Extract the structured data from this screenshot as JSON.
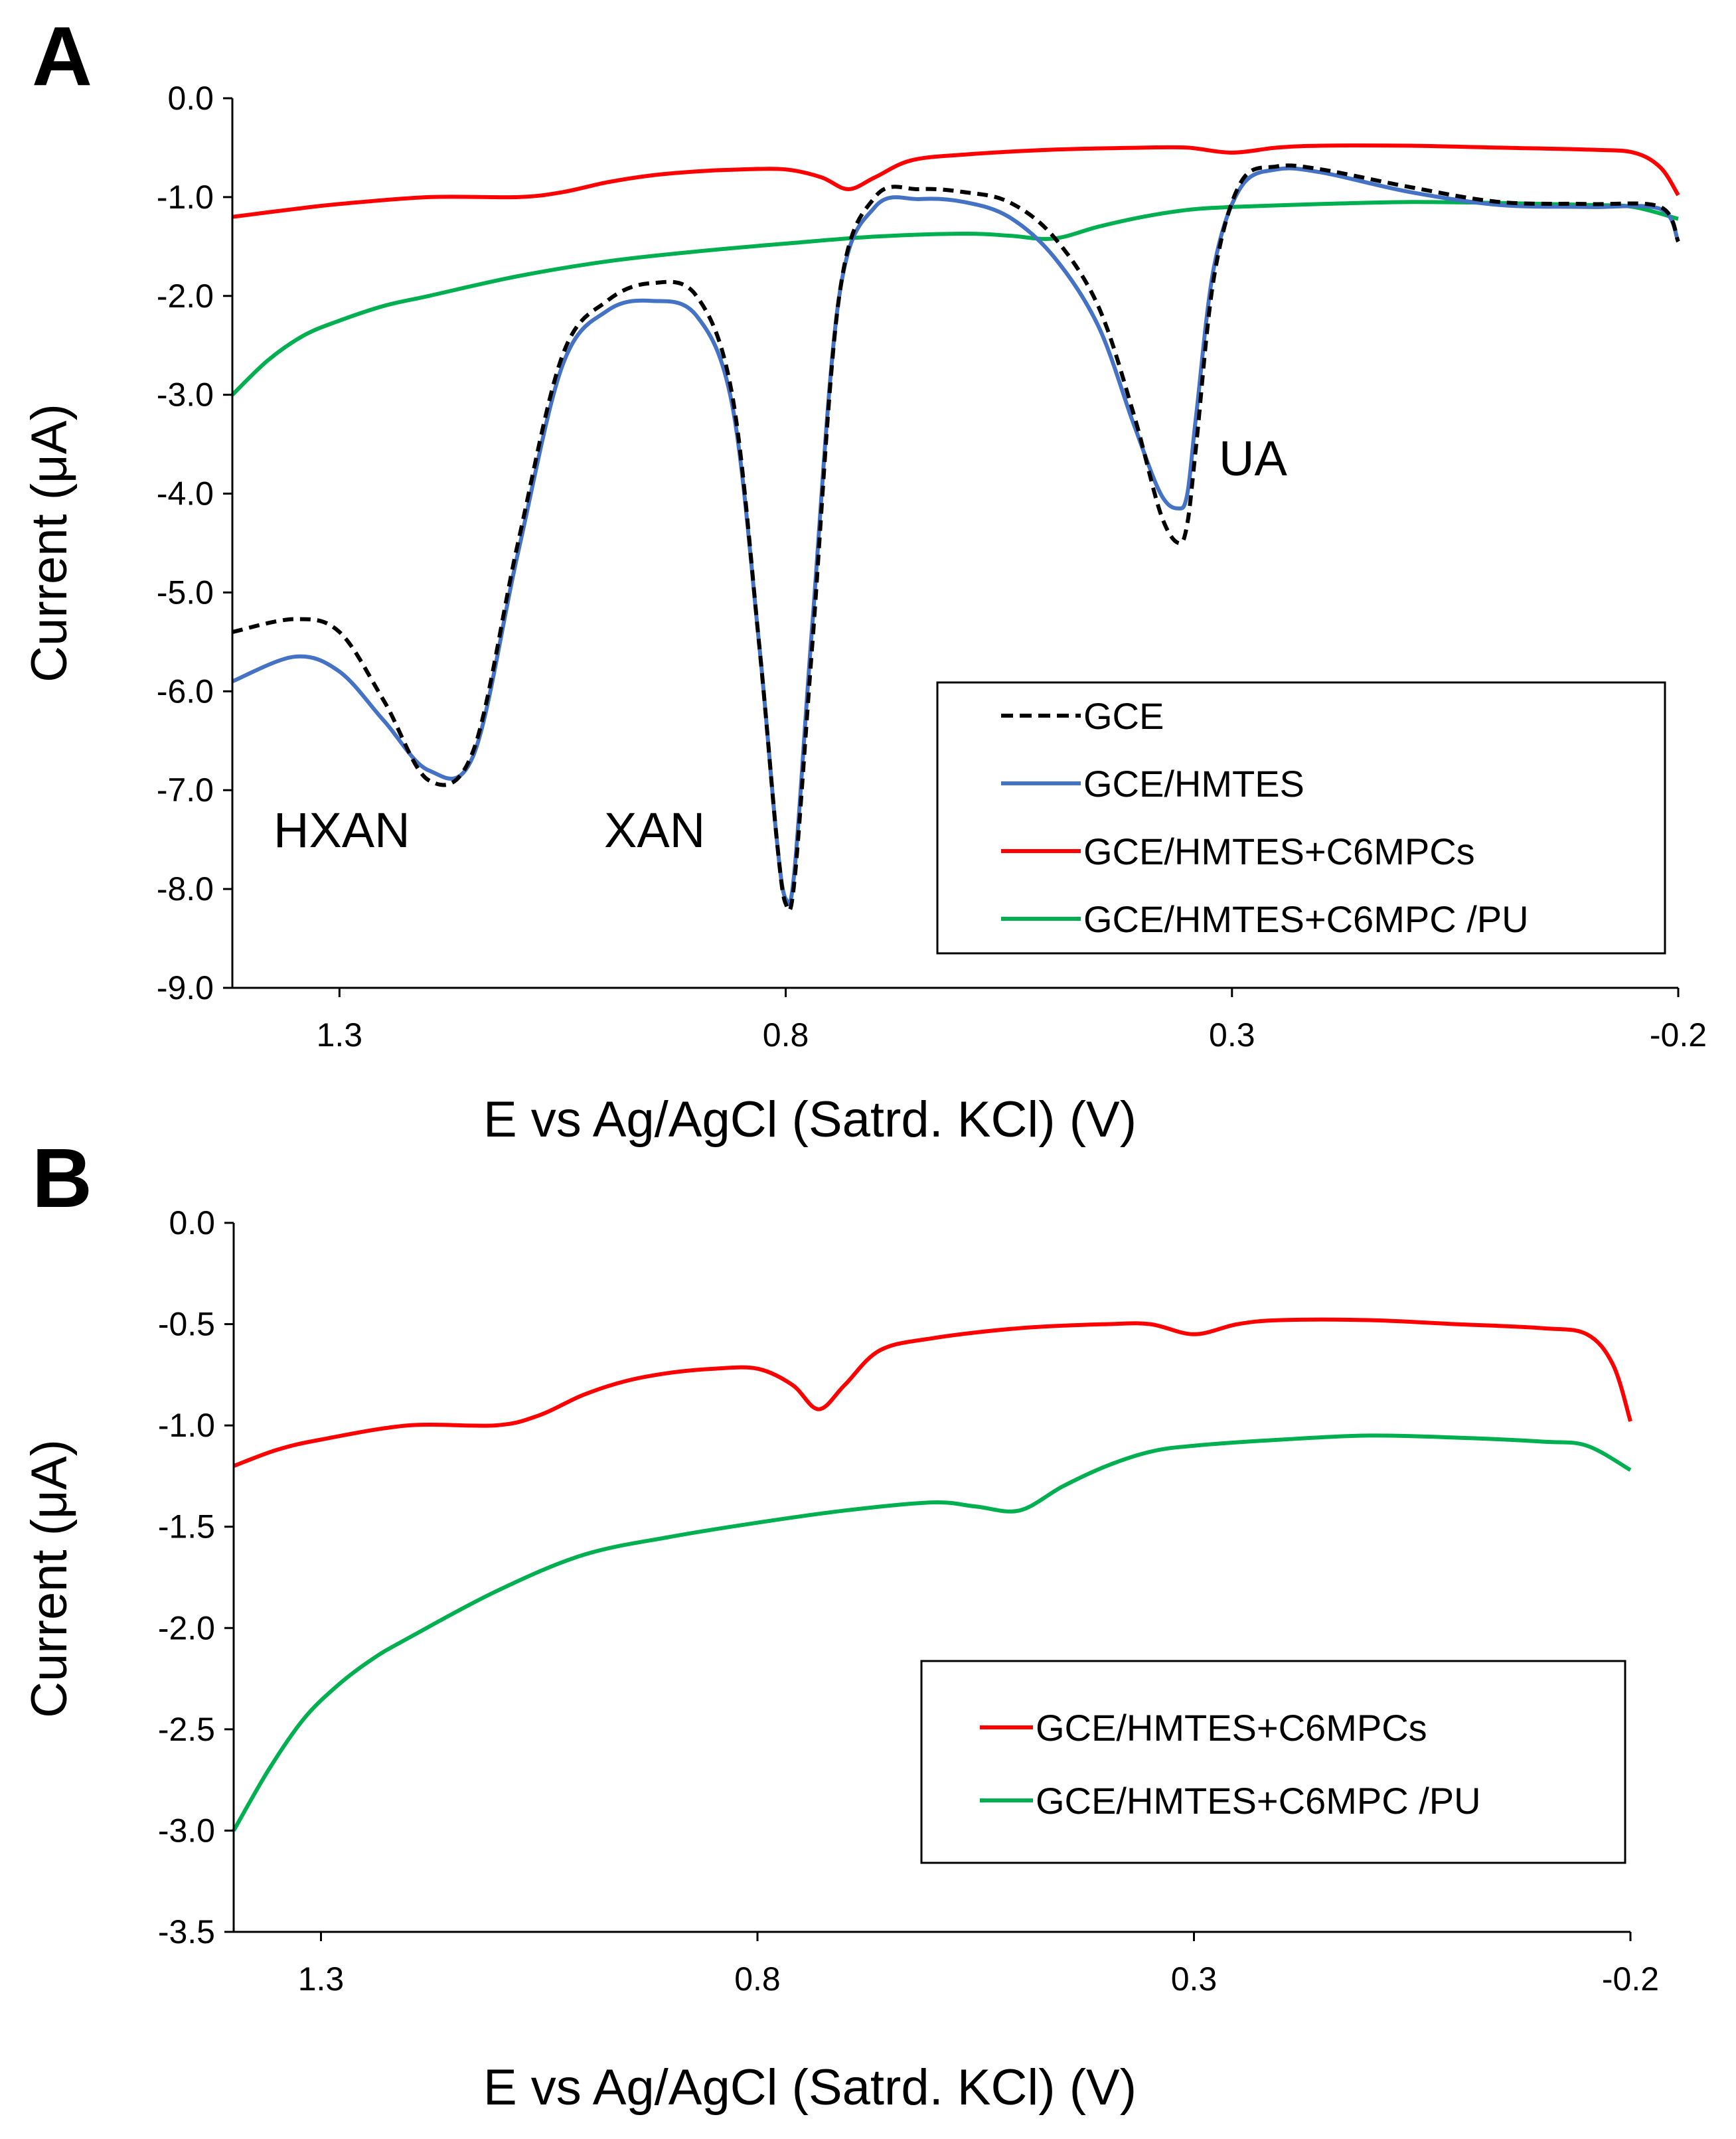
{
  "colors": {
    "GCE": "#000000",
    "GCE/HMTES": "#4472c4",
    "GCE/HMTES+C6MPCs": "#ff0000",
    "GCE/HMTES+C6MPC /PU": "#00b050"
  },
  "chart_data": [
    {
      "type": "line",
      "panel": "A",
      "xlabel": "E vs Ag/AgCl (Satrd. KCl) (V)",
      "ylabel": "Current (μA)",
      "xlim": [
        1.42,
        -0.2
      ],
      "ylim": [
        -9.0,
        0.0
      ],
      "x_reversed": true,
      "xticks": [
        1.3,
        0.8,
        0.3,
        -0.2
      ],
      "xtick_labels": [
        "1.3",
        "0.8",
        "0.3",
        "-0.2"
      ],
      "yticks": [
        0,
        -1,
        -2,
        -3,
        -4,
        -5,
        -6,
        -7,
        -8,
        -9
      ],
      "ytick_labels": [
        "0.0",
        "-1.0",
        "-2.0",
        "-3.0",
        "-4.0",
        "-5.0",
        "-6.0",
        "-7.0",
        "-8.0",
        "-9.0"
      ],
      "legend_position": "bottom-right",
      "annotations": [
        {
          "text": "HXAN",
          "x": 1.2,
          "y": -7.3
        },
        {
          "text": "XAN",
          "x": 0.93,
          "y": -7.3
        },
        {
          "text": "UA",
          "x": 0.3,
          "y": -3.7
        }
      ],
      "series": [
        {
          "name": "GCE",
          "style": "dashed",
          "x": [
            1.42,
            1.35,
            1.3,
            1.25,
            1.2,
            1.15,
            1.1,
            1.05,
            1.0,
            0.95,
            0.9,
            0.86,
            0.83,
            0.81,
            0.8,
            0.79,
            0.77,
            0.74,
            0.7,
            0.65,
            0.6,
            0.55,
            0.5,
            0.45,
            0.41,
            0.38,
            0.36,
            0.35,
            0.34,
            0.32,
            0.29,
            0.25,
            0.2,
            0.1,
            0.0,
            -0.1,
            -0.18,
            -0.2
          ],
          "y": [
            -5.4,
            -5.27,
            -5.4,
            -6.1,
            -6.9,
            -6.6,
            -4.5,
            -2.6,
            -2.05,
            -1.87,
            -2.0,
            -3.0,
            -5.5,
            -7.5,
            -8.15,
            -7.9,
            -5.5,
            -2.0,
            -1.0,
            -0.92,
            -0.95,
            -1.05,
            -1.4,
            -2.1,
            -3.2,
            -4.2,
            -4.5,
            -4.3,
            -3.5,
            -1.8,
            -0.85,
            -0.69,
            -0.72,
            -0.9,
            -1.05,
            -1.07,
            -1.1,
            -1.45
          ]
        },
        {
          "name": "GCE/HMTES",
          "style": "solid",
          "x": [
            1.42,
            1.35,
            1.3,
            1.25,
            1.2,
            1.15,
            1.1,
            1.05,
            1.0,
            0.95,
            0.9,
            0.86,
            0.83,
            0.81,
            0.8,
            0.79,
            0.77,
            0.74,
            0.7,
            0.65,
            0.6,
            0.55,
            0.5,
            0.45,
            0.41,
            0.38,
            0.36,
            0.35,
            0.34,
            0.32,
            0.29,
            0.25,
            0.2,
            0.1,
            0.0,
            -0.1,
            -0.18,
            -0.2
          ],
          "y": [
            -5.9,
            -5.65,
            -5.8,
            -6.3,
            -6.8,
            -6.65,
            -4.6,
            -2.7,
            -2.15,
            -2.05,
            -2.2,
            -3.1,
            -5.5,
            -7.5,
            -8.1,
            -7.8,
            -5.3,
            -2.0,
            -1.1,
            -1.02,
            -1.05,
            -1.2,
            -1.6,
            -2.3,
            -3.3,
            -4.0,
            -4.15,
            -4.0,
            -3.2,
            -1.7,
            -0.9,
            -0.72,
            -0.75,
            -0.95,
            -1.08,
            -1.1,
            -1.12,
            -1.45
          ]
        },
        {
          "name": "GCE/HMTES+C6MPCs",
          "style": "solid",
          "x": [
            1.42,
            1.35,
            1.3,
            1.2,
            1.1,
            1.05,
            1.0,
            0.95,
            0.9,
            0.85,
            0.8,
            0.76,
            0.73,
            0.7,
            0.66,
            0.6,
            0.5,
            0.4,
            0.35,
            0.3,
            0.25,
            0.2,
            0.1,
            0.0,
            -0.1,
            -0.15,
            -0.18,
            -0.2
          ],
          "y": [
            -1.2,
            -1.12,
            -1.07,
            -1.0,
            -1.0,
            -0.95,
            -0.85,
            -0.78,
            -0.74,
            -0.72,
            -0.72,
            -0.8,
            -0.92,
            -0.8,
            -0.63,
            -0.57,
            -0.52,
            -0.5,
            -0.5,
            -0.55,
            -0.5,
            -0.48,
            -0.48,
            -0.5,
            -0.52,
            -0.55,
            -0.7,
            -0.98
          ]
        },
        {
          "name": "GCE/HMTES+C6MPC /PU",
          "style": "solid",
          "x": [
            1.42,
            1.38,
            1.34,
            1.3,
            1.25,
            1.2,
            1.1,
            1.0,
            0.9,
            0.8,
            0.7,
            0.6,
            0.55,
            0.5,
            0.45,
            0.4,
            0.35,
            0.3,
            0.2,
            0.1,
            0.0,
            -0.1,
            -0.15,
            -0.2
          ],
          "y": [
            -3.0,
            -2.65,
            -2.4,
            -2.25,
            -2.1,
            -2.0,
            -1.8,
            -1.65,
            -1.55,
            -1.47,
            -1.4,
            -1.37,
            -1.39,
            -1.42,
            -1.3,
            -1.2,
            -1.13,
            -1.1,
            -1.07,
            -1.05,
            -1.06,
            -1.08,
            -1.1,
            -1.22
          ]
        }
      ]
    },
    {
      "type": "line",
      "panel": "B",
      "xlabel": "E vs Ag/AgCl (Satrd. KCl) (V)",
      "ylabel": "Current (μA)",
      "xlim": [
        1.4,
        -0.2
      ],
      "ylim": [
        -3.5,
        0.0
      ],
      "x_reversed": true,
      "xticks": [
        1.3,
        0.8,
        0.3,
        -0.2
      ],
      "xtick_labels": [
        "1.3",
        "0.8",
        "0.3",
        "-0.2"
      ],
      "yticks": [
        0,
        -0.5,
        -1,
        -1.5,
        -2,
        -2.5,
        -3,
        -3.5
      ],
      "ytick_labels": [
        "0.0",
        "-0.5",
        "-1.0",
        "-1.5",
        "-2.0",
        "-2.5",
        "-3.0",
        "-3.5"
      ],
      "legend_position": "bottom-right",
      "annotations": [],
      "series": [
        {
          "name": "GCE/HMTES+C6MPCs",
          "style": "solid",
          "x": [
            1.4,
            1.35,
            1.3,
            1.2,
            1.1,
            1.05,
            1.0,
            0.95,
            0.9,
            0.85,
            0.8,
            0.76,
            0.73,
            0.7,
            0.66,
            0.6,
            0.5,
            0.4,
            0.35,
            0.3,
            0.25,
            0.2,
            0.1,
            0.0,
            -0.1,
            -0.15,
            -0.18,
            -0.2
          ],
          "y": [
            -1.2,
            -1.12,
            -1.07,
            -1.0,
            -1.0,
            -0.95,
            -0.85,
            -0.78,
            -0.74,
            -0.72,
            -0.72,
            -0.8,
            -0.92,
            -0.8,
            -0.63,
            -0.57,
            -0.52,
            -0.5,
            -0.5,
            -0.55,
            -0.5,
            -0.48,
            -0.48,
            -0.5,
            -0.52,
            -0.55,
            -0.7,
            -0.98
          ]
        },
        {
          "name": "GCE/HMTES+C6MPC /PU",
          "style": "solid",
          "x": [
            1.4,
            1.36,
            1.32,
            1.28,
            1.24,
            1.2,
            1.1,
            1.0,
            0.9,
            0.8,
            0.7,
            0.6,
            0.55,
            0.5,
            0.45,
            0.4,
            0.35,
            0.3,
            0.2,
            0.1,
            0.0,
            -0.1,
            -0.15,
            -0.2
          ],
          "y": [
            -3.0,
            -2.7,
            -2.45,
            -2.28,
            -2.15,
            -2.05,
            -1.82,
            -1.64,
            -1.55,
            -1.48,
            -1.42,
            -1.38,
            -1.4,
            -1.42,
            -1.3,
            -1.2,
            -1.13,
            -1.1,
            -1.07,
            -1.05,
            -1.06,
            -1.08,
            -1.1,
            -1.22
          ]
        }
      ]
    }
  ],
  "panels": [
    {
      "label": "A",
      "xlabel": "E vs Ag/AgCl (Satrd. KCl) (V)",
      "ylabel": "Current (μA)",
      "annotations": [
        "HXAN",
        "XAN",
        "UA"
      ],
      "legend": [
        {
          "label": "GCE",
          "style": "dashed",
          "color": "#000000"
        },
        {
          "label": "GCE/HMTES",
          "style": "solid",
          "color": "#4472c4"
        },
        {
          "label": "GCE/HMTES+C6MPCs",
          "style": "solid",
          "color": "#ff0000"
        },
        {
          "label": "GCE/HMTES+C6MPC /PU",
          "style": "solid",
          "color": "#00b050"
        }
      ]
    },
    {
      "label": "B",
      "xlabel": "E vs Ag/AgCl (Satrd. KCl) (V)",
      "ylabel": "Current (μA)",
      "legend": [
        {
          "label": "GCE/HMTES+C6MPCs",
          "style": "solid",
          "color": "#ff0000"
        },
        {
          "label": "GCE/HMTES+C6MPC /PU",
          "style": "solid",
          "color": "#00b050"
        }
      ]
    }
  ]
}
